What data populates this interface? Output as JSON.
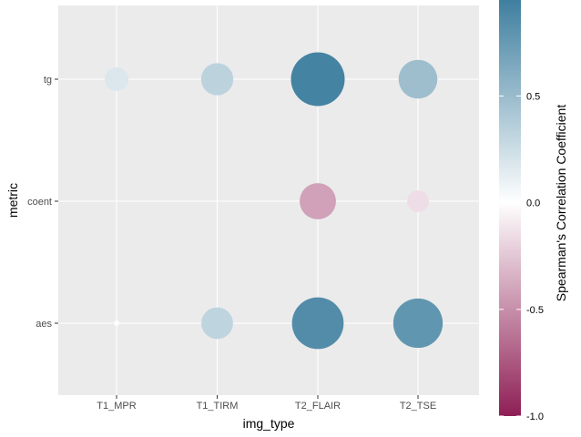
{
  "chart_data": {
    "type": "scatter",
    "xlabel": "img_type",
    "ylabel": "metric",
    "x_categories": [
      "T1_MPR",
      "T1_TIRM",
      "T2_FLAIR",
      "T2_TSE"
    ],
    "y_categories": [
      "aes",
      "coent",
      "tg"
    ],
    "points": [
      {
        "x": "T1_MPR",
        "y": "tg",
        "value": 0.18
      },
      {
        "x": "T1_TIRM",
        "y": "tg",
        "value": 0.33
      },
      {
        "x": "T2_FLAIR",
        "y": "tg",
        "value": 0.92
      },
      {
        "x": "T2_TSE",
        "y": "tg",
        "value": 0.48
      },
      {
        "x": "T2_FLAIR",
        "y": "coent",
        "value": -0.42
      },
      {
        "x": "T2_TSE",
        "y": "coent",
        "value": -0.15
      },
      {
        "x": "T1_MPR",
        "y": "aes",
        "value": 0.01
      },
      {
        "x": "T1_TIRM",
        "y": "aes",
        "value": 0.32
      },
      {
        "x": "T2_FLAIR",
        "y": "aes",
        "value": 0.85
      },
      {
        "x": "T2_TSE",
        "y": "aes",
        "value": 0.78
      }
    ],
    "legend": {
      "title": "Spearman's Correlation Coefficient",
      "position": "right",
      "range": [
        -1.0,
        0.95
      ],
      "ticks": [
        {
          "value": 0.5,
          "label": "0.5"
        },
        {
          "value": 0.0,
          "label": "0.0"
        },
        {
          "value": -0.5,
          "label": "-0.5"
        },
        {
          "value": -1.0,
          "label": "-1.0"
        }
      ],
      "colors": {
        "low": "#8e1f55",
        "mid": "#ffffff",
        "high": "#3f7f9f"
      }
    },
    "panel_color": "#ebebeb",
    "grid": true
  }
}
